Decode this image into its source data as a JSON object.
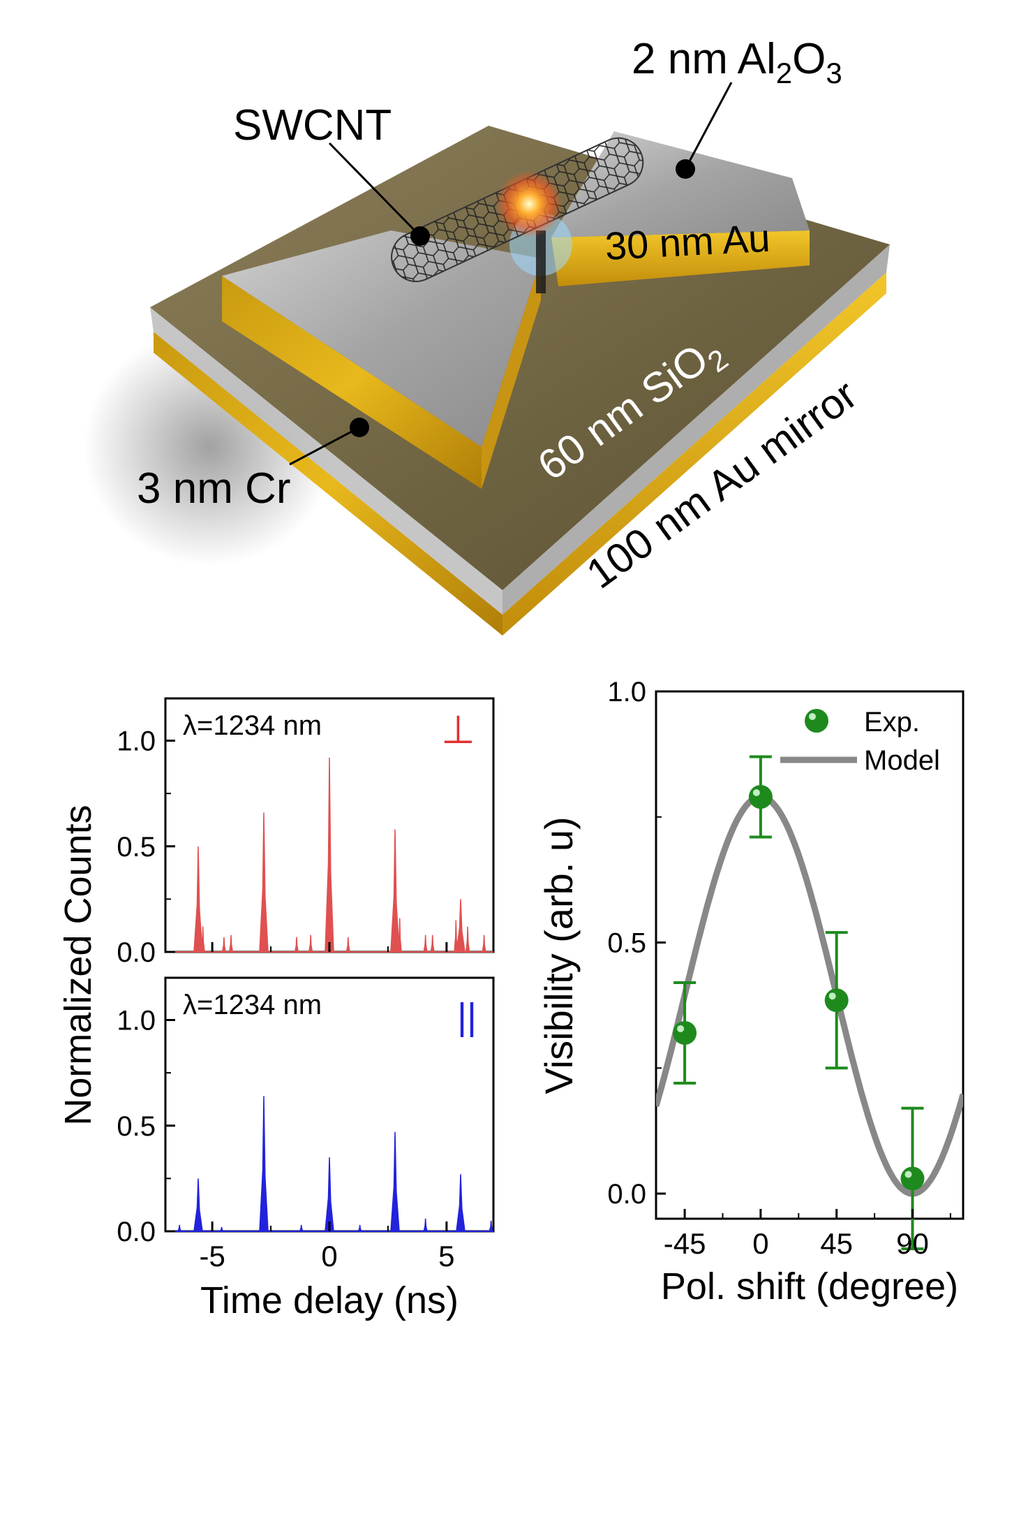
{
  "schematic": {
    "labels": {
      "al2o3_prefix": "2 nm Al",
      "al2o3_sub1": "2",
      "al2o3_mid": "O",
      "al2o3_sub2": "3",
      "swcnt": "SWCNT",
      "au30": "30 nm Au",
      "sio2_prefix": "60 nm SiO",
      "sio2_sub": "2",
      "au_mirror": "100 nm Au mirror",
      "cr": "3 nm Cr"
    }
  },
  "chart_data": [
    {
      "type": "area",
      "panel": "top-left",
      "annotation": "λ=1234 nm",
      "polarization_symbol": "⊥",
      "color": "#e05050",
      "ylabel": "Normalized  Counts",
      "xlim": [
        -7,
        7
      ],
      "ylim": [
        0,
        1.2
      ],
      "yticks": [
        "0.0",
        "0.5",
        "1.0"
      ],
      "peaks": [
        {
          "x": -5.6,
          "y": 0.5
        },
        {
          "x": -2.8,
          "y": 0.66
        },
        {
          "x": 0.0,
          "y": 0.92
        },
        {
          "x": 2.8,
          "y": 0.58
        },
        {
          "x": 5.6,
          "y": 0.25
        }
      ],
      "noise": [
        {
          "x": -5.4,
          "y": 0.12
        },
        {
          "x": -4.5,
          "y": 0.07
        },
        {
          "x": -4.2,
          "y": 0.08
        },
        {
          "x": -1.4,
          "y": 0.07
        },
        {
          "x": -0.8,
          "y": 0.08
        },
        {
          "x": 0.8,
          "y": 0.07
        },
        {
          "x": 3.0,
          "y": 0.16
        },
        {
          "x": 4.1,
          "y": 0.08
        },
        {
          "x": 4.4,
          "y": 0.08
        },
        {
          "x": 5.4,
          "y": 0.15
        },
        {
          "x": 5.9,
          "y": 0.12
        },
        {
          "x": 6.6,
          "y": 0.08
        }
      ]
    },
    {
      "type": "area",
      "panel": "bottom-left",
      "annotation": "λ=1234 nm",
      "polarization_symbol": "||",
      "color": "#2222dd",
      "xlabel": "Time delay (ns)",
      "xlim": [
        -7,
        7
      ],
      "ylim": [
        0,
        1.2
      ],
      "xticks": [
        "-5",
        "0",
        "5"
      ],
      "yticks": [
        "0.0",
        "0.5",
        "1.0"
      ],
      "peaks": [
        {
          "x": -5.6,
          "y": 0.25
        },
        {
          "x": -2.8,
          "y": 0.64
        },
        {
          "x": 0.0,
          "y": 0.35
        },
        {
          "x": 2.8,
          "y": 0.47
        },
        {
          "x": 5.6,
          "y": 0.27
        }
      ],
      "noise": [
        {
          "x": -6.4,
          "y": 0.03
        },
        {
          "x": -4.6,
          "y": 0.02
        },
        {
          "x": -1.2,
          "y": 0.03
        },
        {
          "x": 1.3,
          "y": 0.03
        },
        {
          "x": 4.1,
          "y": 0.06
        },
        {
          "x": 6.9,
          "y": 0.05
        }
      ]
    },
    {
      "type": "scatter",
      "panel": "right",
      "xlabel": "Pol. shift (degree)",
      "ylabel": "Visibility (arb. u)",
      "xlim": [
        -62,
        120
      ],
      "ylim": [
        -0.05,
        1.0
      ],
      "xticks": [
        "-45",
        "0",
        "45",
        "90"
      ],
      "yticks": [
        "0.0",
        "0.5",
        "1.0"
      ],
      "legend": {
        "exp": "Exp.",
        "model": "Model"
      },
      "points": [
        {
          "x": -45,
          "y": 0.32,
          "err": 0.1
        },
        {
          "x": 0,
          "y": 0.79,
          "err": 0.08
        },
        {
          "x": 45,
          "y": 0.385,
          "err": 0.135
        },
        {
          "x": 90,
          "y": 0.03,
          "err": 0.14
        }
      ],
      "model": {
        "formula": "0.395 + 0.395*cos(2*(x-0))",
        "amplitude": 0.395,
        "offset": 0.395,
        "center": 0
      },
      "colors": {
        "points": "#1e8a1e",
        "model": "#888888"
      }
    }
  ]
}
